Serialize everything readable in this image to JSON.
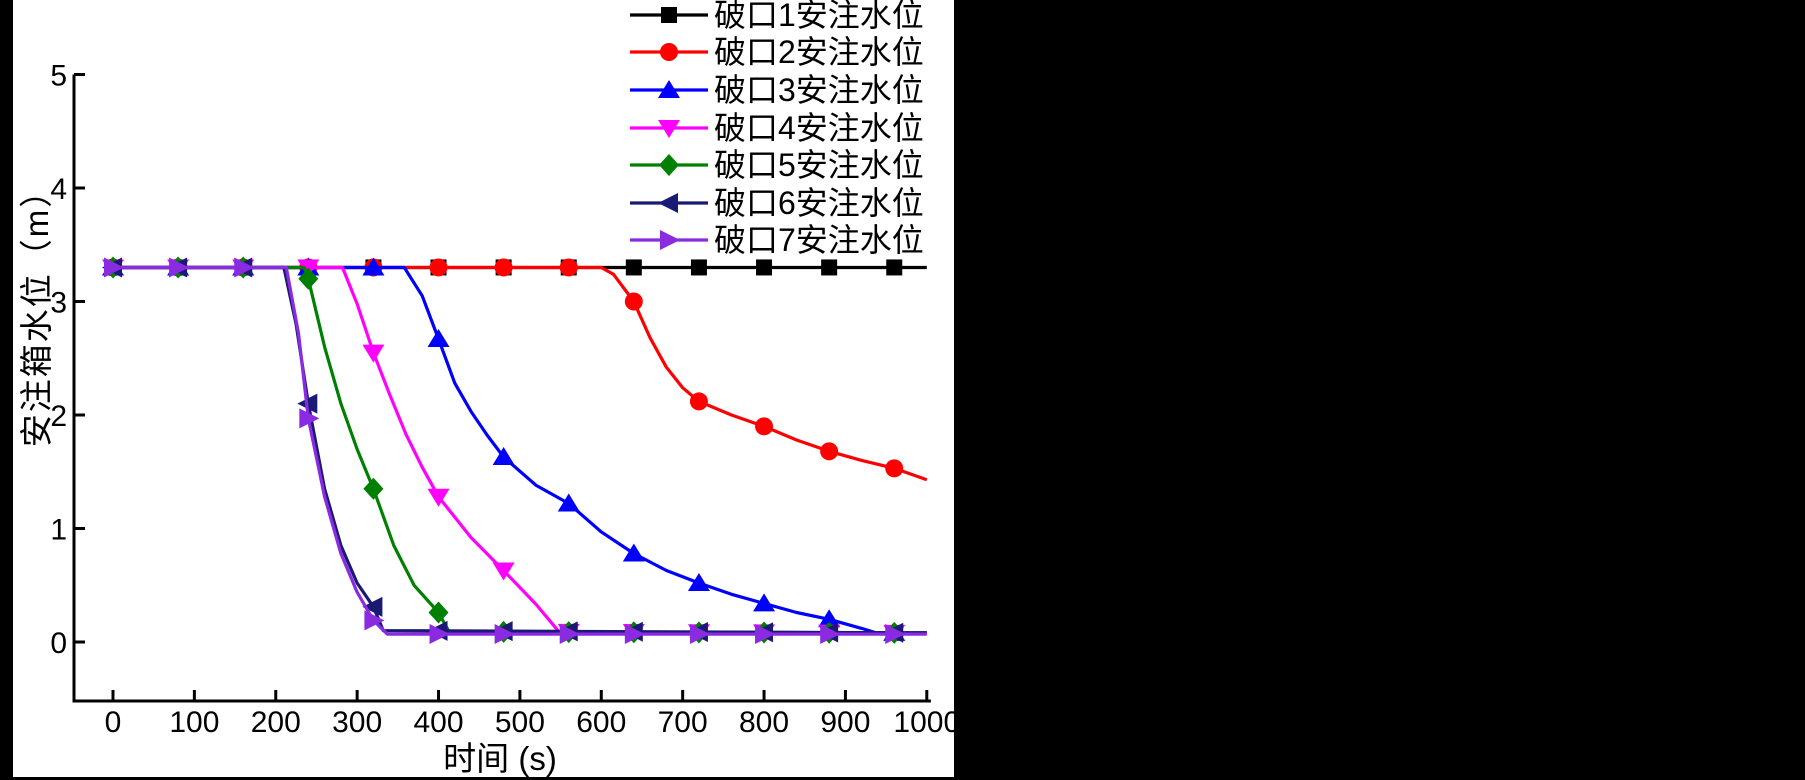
{
  "chart_data": {
    "type": "line",
    "title": "",
    "xlabel": "时间 (s)",
    "ylabel": "安注箱水位（m）",
    "xlim": [
      -48,
      1005
    ],
    "ylim": [
      -0.52,
      5
    ],
    "xticks": [
      0,
      100,
      200,
      300,
      400,
      500,
      600,
      700,
      800,
      900,
      1000
    ],
    "yticks": [
      0,
      1,
      2,
      3,
      4,
      5
    ],
    "grid": false,
    "legend_position": "top-right",
    "marker_interval_s": 80,
    "initial_level_m": 3.3,
    "final_level_m": 0.08,
    "axis_color": "#000000",
    "series": [
      {
        "name": "破口1安注水位",
        "color": "#000000",
        "marker": "square",
        "points": [
          [
            0,
            3.3
          ],
          [
            1000,
            3.3
          ]
        ]
      },
      {
        "name": "破口2安注水位",
        "color": "#ff0000",
        "marker": "circle",
        "points": [
          [
            0,
            3.3
          ],
          [
            600,
            3.3
          ],
          [
            615,
            3.24
          ],
          [
            640,
            3.0
          ],
          [
            660,
            2.68
          ],
          [
            680,
            2.42
          ],
          [
            700,
            2.24
          ],
          [
            720,
            2.12
          ],
          [
            760,
            2.0
          ],
          [
            800,
            1.9
          ],
          [
            840,
            1.78
          ],
          [
            880,
            1.68
          ],
          [
            920,
            1.6
          ],
          [
            960,
            1.53
          ],
          [
            1000,
            1.43
          ]
        ]
      },
      {
        "name": "破口3安注水位",
        "color": "#0000ff",
        "marker": "triangle-up",
        "points": [
          [
            0,
            3.3
          ],
          [
            358,
            3.3
          ],
          [
            380,
            3.05
          ],
          [
            400,
            2.67
          ],
          [
            420,
            2.28
          ],
          [
            440,
            2.03
          ],
          [
            460,
            1.82
          ],
          [
            480,
            1.63
          ],
          [
            520,
            1.38
          ],
          [
            560,
            1.22
          ],
          [
            600,
            0.97
          ],
          [
            640,
            0.78
          ],
          [
            680,
            0.63
          ],
          [
            720,
            0.52
          ],
          [
            760,
            0.42
          ],
          [
            800,
            0.34
          ],
          [
            840,
            0.26
          ],
          [
            880,
            0.2
          ],
          [
            920,
            0.12
          ],
          [
            938,
            0.08
          ],
          [
            1000,
            0.08
          ]
        ]
      },
      {
        "name": "破口4安注水位",
        "color": "#ff00ff",
        "marker": "triangle-down",
        "points": [
          [
            0,
            3.3
          ],
          [
            282,
            3.3
          ],
          [
            300,
            2.98
          ],
          [
            320,
            2.55
          ],
          [
            340,
            2.18
          ],
          [
            360,
            1.83
          ],
          [
            380,
            1.54
          ],
          [
            400,
            1.28
          ],
          [
            440,
            0.92
          ],
          [
            480,
            0.63
          ],
          [
            520,
            0.33
          ],
          [
            548,
            0.09
          ],
          [
            1000,
            0.08
          ]
        ]
      },
      {
        "name": "破口5安注水位",
        "color": "#008000",
        "marker": "diamond",
        "points": [
          [
            0,
            3.3
          ],
          [
            235,
            3.3
          ],
          [
            240,
            3.2
          ],
          [
            260,
            2.6
          ],
          [
            280,
            2.1
          ],
          [
            300,
            1.7
          ],
          [
            320,
            1.35
          ],
          [
            345,
            0.85
          ],
          [
            370,
            0.5
          ],
          [
            400,
            0.26
          ],
          [
            413,
            0.09
          ],
          [
            1000,
            0.08
          ]
        ]
      },
      {
        "name": "破口6安注水位",
        "color": "#1a1a75",
        "marker": "triangle-left",
        "points": [
          [
            0,
            3.3
          ],
          [
            210,
            3.3
          ],
          [
            225,
            2.8
          ],
          [
            240,
            2.1
          ],
          [
            260,
            1.35
          ],
          [
            280,
            0.85
          ],
          [
            300,
            0.52
          ],
          [
            320,
            0.31
          ],
          [
            332,
            0.1
          ],
          [
            1000,
            0.08
          ]
        ]
      },
      {
        "name": "破口7安注水位",
        "color": "#8a2be2",
        "marker": "triangle-right",
        "points": [
          [
            0,
            3.3
          ],
          [
            213,
            3.3
          ],
          [
            228,
            2.72
          ],
          [
            240,
            1.97
          ],
          [
            260,
            1.28
          ],
          [
            280,
            0.78
          ],
          [
            300,
            0.44
          ],
          [
            320,
            0.19
          ],
          [
            337,
            0.07
          ],
          [
            1000,
            0.07
          ]
        ]
      }
    ]
  }
}
